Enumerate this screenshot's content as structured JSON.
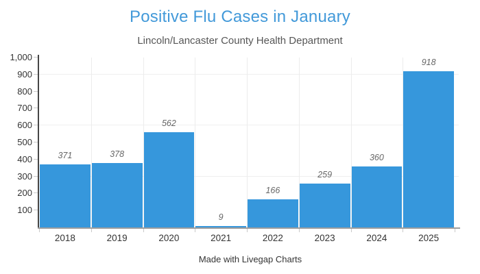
{
  "page": {
    "title": "Positive Flu Cases in January",
    "subtitle": "Lincoln/Lancaster County Health Department",
    "footer": "Made with Livegap Charts"
  },
  "colors": {
    "bar": "#3697dc",
    "title": "#4299d9",
    "subtitle": "#565656",
    "value_label": "#666666",
    "tick_label": "#333333",
    "grid_h": "#efefef",
    "grid_v": "#ececec",
    "tick_mark": "#c9c9c9",
    "x_axis_line": "#9e9e9e",
    "y_axis_line": "#454545"
  },
  "chart_data": {
    "type": "bar",
    "title": "Positive Flu Cases in January",
    "subtitle": "Lincoln/Lancaster County Health Department",
    "categories": [
      "2018",
      "2019",
      "2020",
      "2021",
      "2022",
      "2023",
      "2024",
      "2025"
    ],
    "values": [
      371,
      378,
      562,
      9,
      166,
      259,
      360,
      918
    ],
    "value_labels": [
      "371",
      "378",
      "562",
      "9",
      "166",
      "259",
      "360",
      "918"
    ],
    "xlabel": "",
    "ylabel": "",
    "ylim": [
      0,
      1000
    ],
    "y_tick_step": 100,
    "y_tick_labels": [
      "100",
      "200",
      "300",
      "400",
      "500",
      "600",
      "700",
      "800",
      "900",
      "1,000"
    ],
    "h_gridlines_at": [
      300,
      600,
      900
    ],
    "grid": "partial (horizontal at 300/600/900, vertical at category boundaries)",
    "legend_position": "none",
    "value_labels_position": "above-bar, italic",
    "attribution": "Made with Livegap Charts"
  }
}
